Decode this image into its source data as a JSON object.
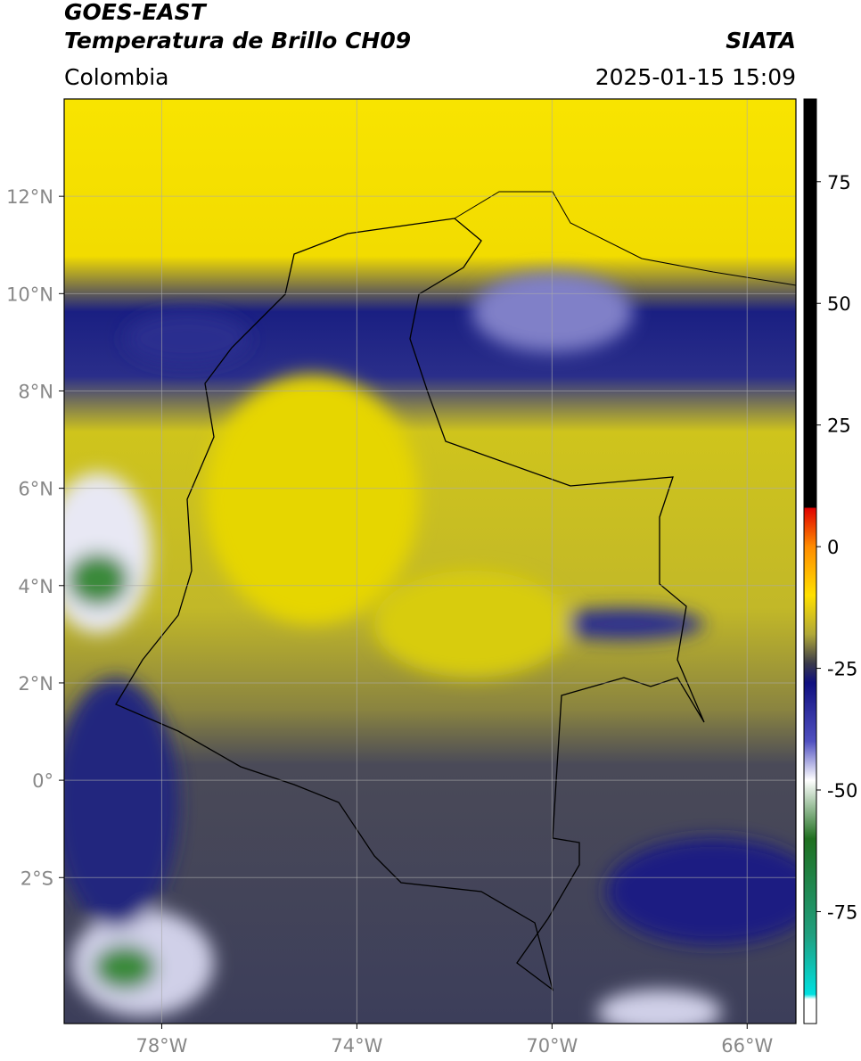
{
  "header": {
    "satellite": "GOES-EAST",
    "product": "Temperatura de Brillo CH09",
    "source": "SIATA",
    "region": "Colombia",
    "datetime": "2025-01-15 15:09"
  },
  "map": {
    "xlim": [
      -80,
      -65
    ],
    "ylim": [
      -5,
      14
    ],
    "xticks": [
      {
        "value": -78,
        "label": "78°W"
      },
      {
        "value": -74,
        "label": "74°W"
      },
      {
        "value": -70,
        "label": "70°W"
      },
      {
        "value": -66,
        "label": "66°W"
      }
    ],
    "yticks": [
      {
        "value": 12,
        "label": "12°N"
      },
      {
        "value": 10,
        "label": "10°N"
      },
      {
        "value": 8,
        "label": "8°N"
      },
      {
        "value": 6,
        "label": "6°N"
      },
      {
        "value": 4,
        "label": "4°N"
      },
      {
        "value": 2,
        "label": "2°N"
      },
      {
        "value": 0,
        "label": "0°"
      },
      {
        "value": -2,
        "label": "2°S"
      }
    ],
    "grid": true
  },
  "colorbar": {
    "lim": [
      -98,
      92
    ],
    "ticks": [
      75,
      50,
      25,
      0,
      -25,
      -50,
      -75
    ],
    "stops": [
      {
        "value": 92,
        "color": "#000000"
      },
      {
        "value": 8,
        "color": "#000000"
      },
      {
        "value": 8,
        "color": "#e00000"
      },
      {
        "value": 0,
        "color": "#ff8c00"
      },
      {
        "value": -10,
        "color": "#ffe000"
      },
      {
        "value": -18,
        "color": "#b0a838"
      },
      {
        "value": -24,
        "color": "#3a3a4a"
      },
      {
        "value": -28,
        "color": "#101080"
      },
      {
        "value": -40,
        "color": "#5050c0"
      },
      {
        "value": -48,
        "color": "#ffffff"
      },
      {
        "value": -60,
        "color": "#207020"
      },
      {
        "value": -80,
        "color": "#20a080"
      },
      {
        "value": -92,
        "color": "#00e0e0"
      },
      {
        "value": -93,
        "color": "#ffffff"
      },
      {
        "value": -98,
        "color": "#ffffff"
      }
    ]
  }
}
